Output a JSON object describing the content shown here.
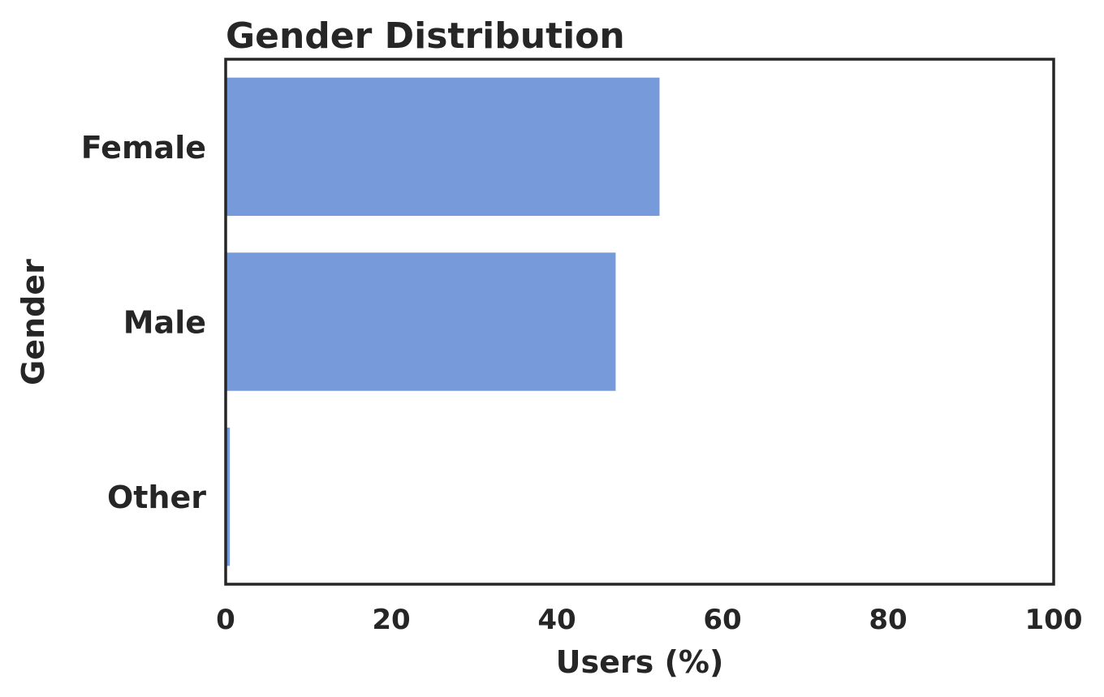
{
  "chart_data": {
    "type": "bar",
    "orientation": "horizontal",
    "title": "Gender Distribution",
    "xlabel": "Users (%)",
    "ylabel": "Gender",
    "categories": [
      "Female",
      "Male",
      "Other"
    ],
    "values": [
      52.4,
      47.1,
      0.5
    ],
    "xlim": [
      0,
      100
    ],
    "xticks": [
      0,
      20,
      40,
      60,
      80,
      100
    ],
    "grid": false,
    "bar_color": "#779ADB",
    "axis_color": "#262626"
  }
}
